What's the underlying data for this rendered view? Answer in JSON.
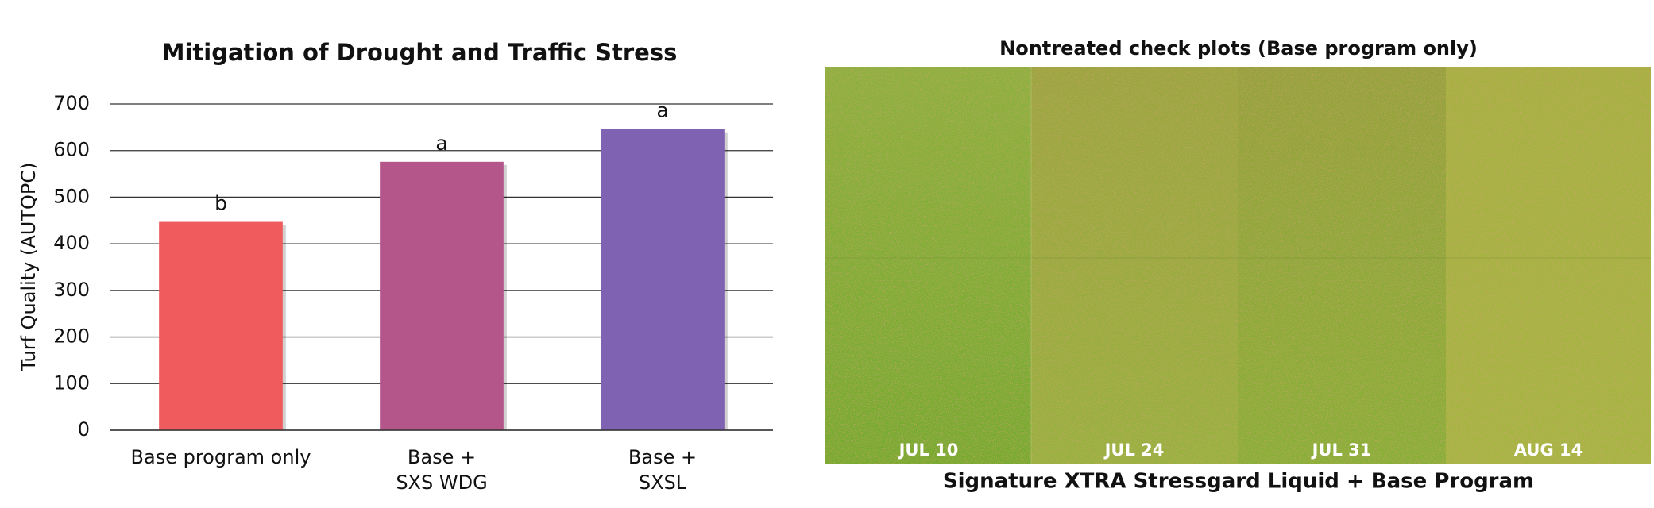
{
  "chart_data": {
    "type": "bar",
    "title": "Mitigation of Drought and Traffic Stress",
    "y_label": "Turf Quality (AUTQPC)",
    "categories": [
      "Base program only",
      "Base +\nSXS WDG",
      "Base +\nSXSL"
    ],
    "values": [
      447,
      576,
      646
    ],
    "annotations": [
      "b",
      "a",
      "a"
    ],
    "colors": [
      "#f05c5e",
      "#b4568a",
      "#8062b2"
    ],
    "ylim": [
      0,
      700
    ],
    "yticks": [
      0,
      100,
      200,
      300,
      400,
      500,
      600,
      700
    ],
    "grid": true
  },
  "photo": {
    "title": "Nontreated check plots (Base program only)",
    "caption": "Signature XTRA Stressgard Liquid + Base Program",
    "dates": [
      "JUL 10",
      "JUL 24",
      "JUL 31",
      "AUG 14"
    ]
  }
}
